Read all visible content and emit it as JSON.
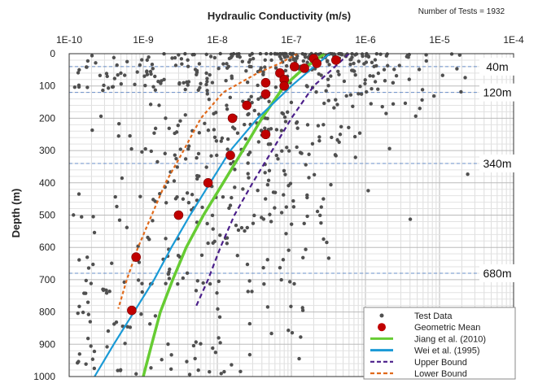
{
  "chart_data": {
    "type": "scatter",
    "title": "Hydraulic Conductivity (m/s)",
    "note": "Number of Tests = 1932",
    "xlabel": "Hydraulic Conductivity (m/s)",
    "ylabel": "Depth (m)",
    "xscale": "log",
    "xlim": [
      1e-10,
      0.0001
    ],
    "ylim": [
      1000,
      0
    ],
    "x_tick_labels": [
      "1E-10",
      "1E-9",
      "1E-8",
      "1E-7",
      "1E-6",
      "1E-5",
      "1E-4"
    ],
    "y_tick_labels": [
      "0",
      "100",
      "200",
      "300",
      "400",
      "500",
      "600",
      "700",
      "800",
      "900",
      "1000"
    ],
    "grid": true,
    "legend_position": "bottom-right",
    "zone_lines": [
      {
        "label": "40m",
        "depth": 40
      },
      {
        "label": "120m",
        "depth": 120
      },
      {
        "label": "340m",
        "depth": 340
      },
      {
        "label": "680m",
        "depth": 680
      }
    ],
    "series": [
      {
        "name": "Test Data",
        "style": "scatter",
        "color": "#555555",
        "points_generated": true
      },
      {
        "name": "Geometric Mean",
        "style": "marker",
        "color": "#c00000",
        "points": [
          [
            2e-07,
            15
          ],
          [
            4e-07,
            20
          ],
          [
            2.2e-07,
            30
          ],
          [
            1.1e-07,
            40
          ],
          [
            1.5e-07,
            45
          ],
          [
            7e-08,
            60
          ],
          [
            8e-08,
            80
          ],
          [
            4.5e-08,
            90
          ],
          [
            8e-08,
            100
          ],
          [
            4.5e-08,
            125
          ],
          [
            2.5e-08,
            160
          ],
          [
            1.6e-08,
            200
          ],
          [
            4.5e-08,
            250
          ],
          [
            1.5e-08,
            315
          ],
          [
            7.5e-09,
            400
          ],
          [
            3e-09,
            500
          ],
          [
            8e-10,
            630
          ],
          [
            7e-10,
            795
          ]
        ]
      },
      {
        "name": "Jiang et al. (2010)",
        "style": "line",
        "color": "#66cc33",
        "points": [
          [
            2.8e-07,
            0
          ],
          [
            1.4e-07,
            50
          ],
          [
            8e-08,
            100
          ],
          [
            4e-08,
            200
          ],
          [
            2.2e-08,
            300
          ],
          [
            1.2e-08,
            400
          ],
          [
            6.5e-09,
            500
          ],
          [
            3.8e-09,
            600
          ],
          [
            2.5e-09,
            700
          ],
          [
            1.7e-09,
            800
          ],
          [
            1.3e-09,
            900
          ],
          [
            1e-09,
            1000
          ]
        ]
      },
      {
        "name": "Wei et al. (1995)",
        "style": "line",
        "color": "#1a9ad6",
        "points": [
          [
            3.3e-07,
            0
          ],
          [
            1.8e-07,
            50
          ],
          [
            1e-07,
            100
          ],
          [
            3.5e-08,
            200
          ],
          [
            1.5e-08,
            300
          ],
          [
            8e-09,
            400
          ],
          [
            4.3e-09,
            500
          ],
          [
            2.4e-09,
            600
          ],
          [
            1.4e-09,
            700
          ],
          [
            7.5e-10,
            800
          ],
          [
            4e-10,
            900
          ],
          [
            2.2e-10,
            1000
          ]
        ]
      },
      {
        "name": "Upper Bound",
        "style": "dashed",
        "color": "#4b1f8a",
        "points": [
          [
            6e-07,
            0
          ],
          [
            3.5e-07,
            50
          ],
          [
            2e-07,
            100
          ],
          [
            1e-07,
            200
          ],
          [
            5.5e-08,
            300
          ],
          [
            3e-08,
            400
          ],
          [
            1.7e-08,
            500
          ],
          [
            1.1e-08,
            600
          ],
          [
            7.5e-09,
            700
          ],
          [
            5e-09,
            790
          ]
        ]
      },
      {
        "name": "Lower Bound",
        "style": "dashed",
        "color": "#e06a1c",
        "points": [
          [
            1.2e-07,
            0
          ],
          [
            7e-08,
            30
          ],
          [
            3.5e-08,
            60
          ],
          [
            1.2e-08,
            120
          ],
          [
            6e-09,
            200
          ],
          [
            3.5e-09,
            300
          ],
          [
            2e-09,
            400
          ],
          [
            1.3e-09,
            500
          ],
          [
            8.5e-10,
            600
          ],
          [
            6e-10,
            700
          ],
          [
            4.6e-10,
            790
          ]
        ]
      }
    ]
  }
}
